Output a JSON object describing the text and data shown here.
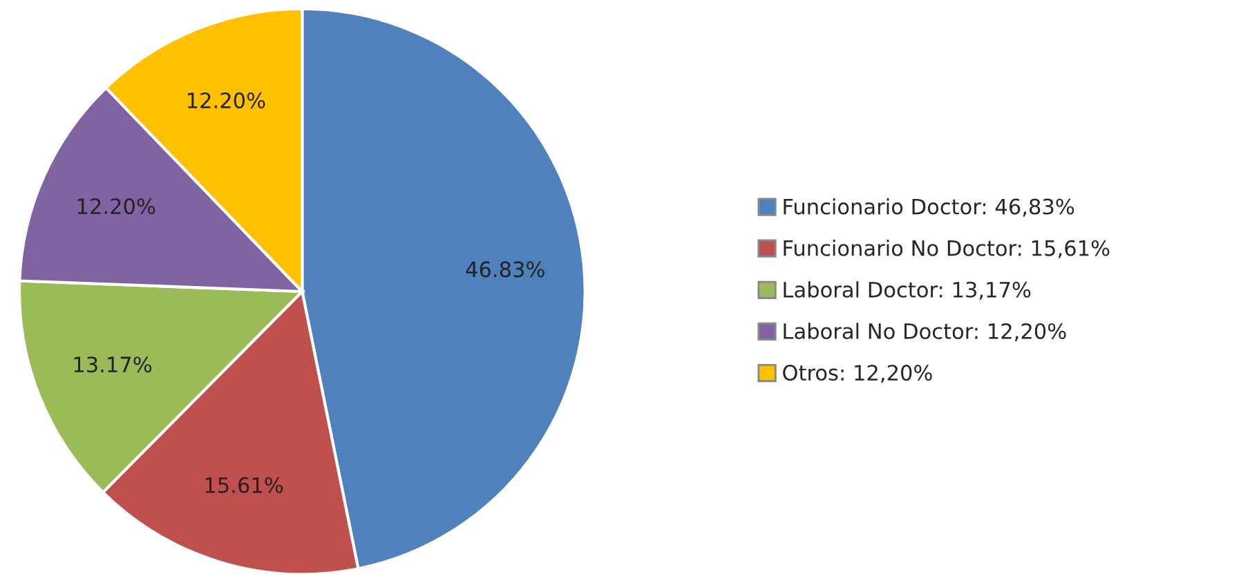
{
  "chart_data": {
    "type": "pie",
    "categories": [
      "Funcionario Doctor: 46,83%",
      "Funcionario No Doctor: 15,61%",
      "Laboral Doctor: 13,17%",
      "Laboral No Doctor: 12,20%",
      "Otros: 12,20%"
    ],
    "values": [
      46.83,
      15.61,
      13.17,
      12.2,
      12.2
    ],
    "value_labels": [
      "46.83%",
      "15.61%",
      "13.17%",
      "12.20%",
      "12.20%"
    ],
    "colors": [
      "#4f81bd",
      "#c0504d",
      "#9bbb59",
      "#8064a2",
      "#ffc000"
    ],
    "legend": "right"
  }
}
